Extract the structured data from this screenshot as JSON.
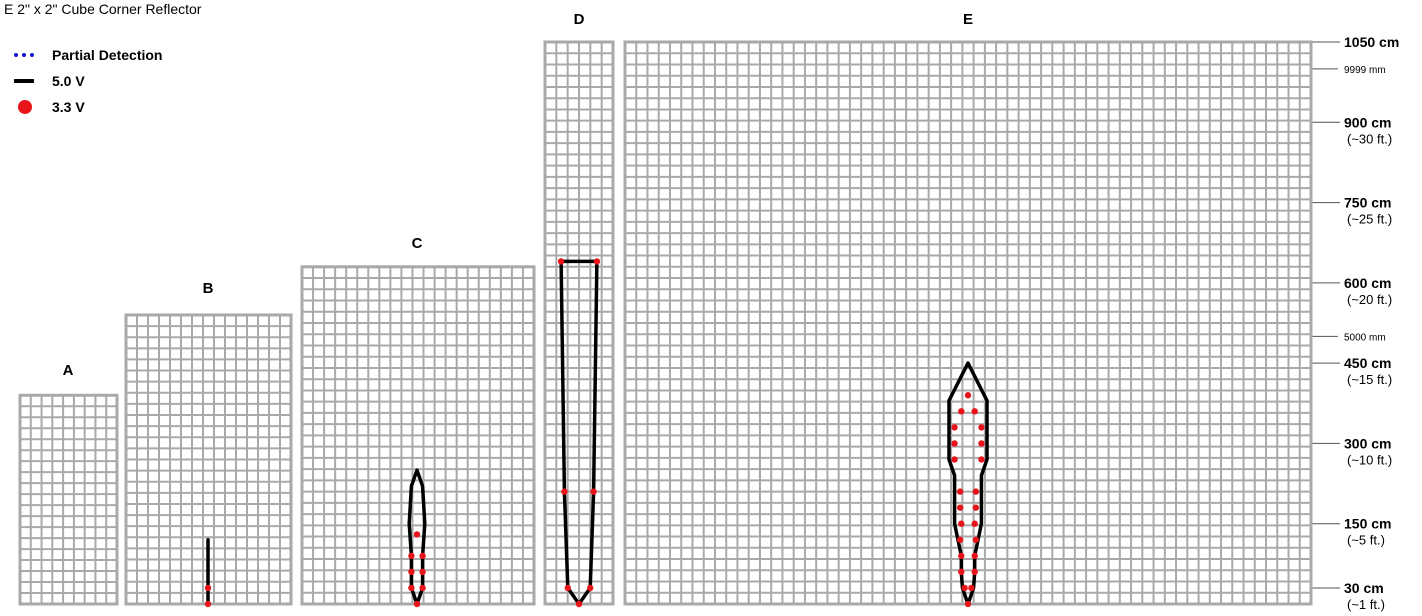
{
  "title": "E 2\" x 2\" Cube Corner Reflector",
  "legend": [
    {
      "label": "Partial Detection",
      "style": "dotted",
      "color": "#1515d6"
    },
    {
      "label": "5.0 V",
      "style": "solid",
      "color": "#000000"
    },
    {
      "label": "3.3 V",
      "style": "dot",
      "color": "#e8141a"
    }
  ],
  "chart_data": {
    "type": "line",
    "title": "E 2\" x 2\" Cube Corner Reflector",
    "x_unit": "grid squares (lateral, 0 = sensor axis)",
    "y_unit": "cm",
    "ylim": [
      0,
      1050
    ],
    "y_ticks": [
      {
        "value": 1050,
        "label": "1050 cm",
        "sub": ""
      },
      {
        "value": 999.9,
        "label": "9999 mm",
        "sub": "",
        "minor": true
      },
      {
        "value": 900,
        "label": "900 cm",
        "sub": "(~30 ft.)"
      },
      {
        "value": 750,
        "label": "750 cm",
        "sub": "(~25 ft.)"
      },
      {
        "value": 600,
        "label": "600 cm",
        "sub": "(~20 ft.)"
      },
      {
        "value": 500,
        "label": "5000 mm",
        "sub": "",
        "minor": true
      },
      {
        "value": 450,
        "label": "450 cm",
        "sub": "(~15 ft.)"
      },
      {
        "value": 300,
        "label": "300 cm",
        "sub": "(~10 ft.)"
      },
      {
        "value": 150,
        "label": "150 cm",
        "sub": "(~5 ft.)"
      },
      {
        "value": 30,
        "label": "30 cm",
        "sub": "(~1 ft.)"
      }
    ],
    "panels": [
      {
        "name": "A",
        "max_range_cm": 390,
        "line_5v": [],
        "dots_3v3": []
      },
      {
        "name": "B",
        "max_range_cm": 540,
        "line_5v": [
          [
            0,
            0
          ],
          [
            0,
            120
          ]
        ],
        "dots_3v3": [
          [
            0,
            0
          ],
          [
            0,
            30
          ]
        ]
      },
      {
        "name": "C",
        "max_range_cm": 630,
        "line_5v": [
          [
            0,
            0
          ],
          [
            -0.5,
            30
          ],
          [
            -0.5,
            90
          ],
          [
            -0.7,
            150
          ],
          [
            -0.5,
            220
          ],
          [
            0,
            250
          ],
          [
            0.5,
            220
          ],
          [
            0.7,
            150
          ],
          [
            0.5,
            90
          ],
          [
            0.5,
            30
          ],
          [
            0,
            0
          ]
        ],
        "dots_3v3": [
          [
            0,
            0
          ],
          [
            -0.5,
            30
          ],
          [
            0.5,
            30
          ],
          [
            -0.5,
            60
          ],
          [
            0.5,
            60
          ],
          [
            -0.5,
            90
          ],
          [
            0.5,
            90
          ],
          [
            0,
            130
          ]
        ]
      },
      {
        "name": "D",
        "max_range_cm": 1050,
        "line_5v": [
          [
            0,
            0
          ],
          [
            -1,
            30
          ],
          [
            -1.3,
            210
          ],
          [
            -1.6,
            640
          ],
          [
            1.6,
            640
          ],
          [
            1.3,
            210
          ],
          [
            1,
            30
          ],
          [
            0,
            0
          ]
        ],
        "dots_3v3": [
          [
            0,
            0
          ],
          [
            -1,
            30
          ],
          [
            1,
            30
          ],
          [
            -1.3,
            210
          ],
          [
            1.3,
            210
          ],
          [
            -1.6,
            640
          ],
          [
            1.6,
            640
          ]
        ]
      },
      {
        "name": "E",
        "max_range_cm": 1050,
        "line_5v": [
          [
            0,
            0
          ],
          [
            -0.5,
            30
          ],
          [
            -0.6,
            60
          ],
          [
            -0.6,
            90
          ],
          [
            -1.2,
            150
          ],
          [
            -1.2,
            240
          ],
          [
            -1.7,
            270
          ],
          [
            -1.7,
            380
          ],
          [
            0,
            450
          ],
          [
            1.7,
            380
          ],
          [
            1.7,
            270
          ],
          [
            1.2,
            240
          ],
          [
            1.2,
            150
          ],
          [
            0.6,
            90
          ],
          [
            0.6,
            60
          ],
          [
            0.5,
            30
          ],
          [
            0,
            0
          ]
        ],
        "dots_3v3": [
          [
            0,
            0
          ],
          [
            -0.3,
            30
          ],
          [
            0.3,
            30
          ],
          [
            -0.6,
            60
          ],
          [
            0.6,
            60
          ],
          [
            -0.6,
            90
          ],
          [
            0.6,
            90
          ],
          [
            -0.7,
            120
          ],
          [
            0.7,
            120
          ],
          [
            -0.6,
            150
          ],
          [
            0.6,
            150
          ],
          [
            -0.7,
            180
          ],
          [
            0.7,
            180
          ],
          [
            -0.7,
            210
          ],
          [
            0.7,
            210
          ],
          [
            -1.2,
            270
          ],
          [
            1.2,
            270
          ],
          [
            -1.2,
            300
          ],
          [
            1.2,
            300
          ],
          [
            -1.2,
            330
          ],
          [
            1.2,
            330
          ],
          [
            -0.6,
            360
          ],
          [
            0.6,
            360
          ],
          [
            0,
            390
          ]
        ]
      }
    ]
  }
}
